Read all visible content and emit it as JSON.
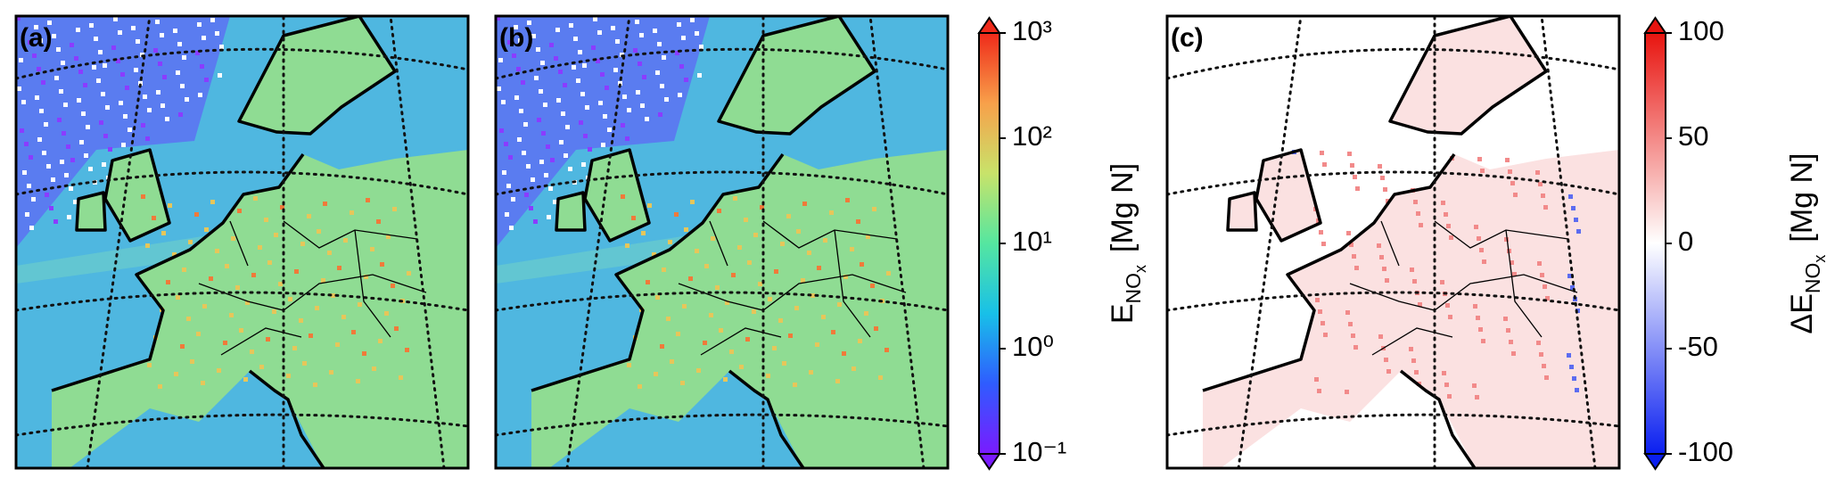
{
  "panels": [
    {
      "label": "(a)",
      "style": "emission"
    },
    {
      "label": "(b)",
      "style": "emission"
    },
    {
      "label": "(c)",
      "style": "difference"
    }
  ],
  "colorbars": [
    {
      "scale": "log",
      "lim": [
        0.1,
        1000
      ],
      "ticks": [
        {
          "value": 0.1,
          "label": "10⁻¹"
        },
        {
          "value": 1,
          "label": "10⁰"
        },
        {
          "value": 10,
          "label": "10¹"
        },
        {
          "value": 100,
          "label": "10²"
        },
        {
          "value": 1000,
          "label": "10³"
        }
      ],
      "colors": [
        "#7a1bff",
        "#2f5cff",
        "#18c0e8",
        "#55e6a0",
        "#c8e36a",
        "#f8a04a",
        "#ef2a1a"
      ],
      "label": {
        "main": "E",
        "sub": "NO",
        "subsub": "x",
        "unit": "[Mg N]"
      }
    },
    {
      "scale": "linear",
      "lim": [
        -100,
        100
      ],
      "ticks": [
        -100,
        -50,
        0,
        50,
        100
      ],
      "colors": [
        "#0a1ff0",
        "#ffffff",
        "#e8140f"
      ],
      "label": {
        "main": "ΔE",
        "sub": "NO",
        "subsub": "x",
        "unit": "[Mg N]"
      }
    }
  ]
}
